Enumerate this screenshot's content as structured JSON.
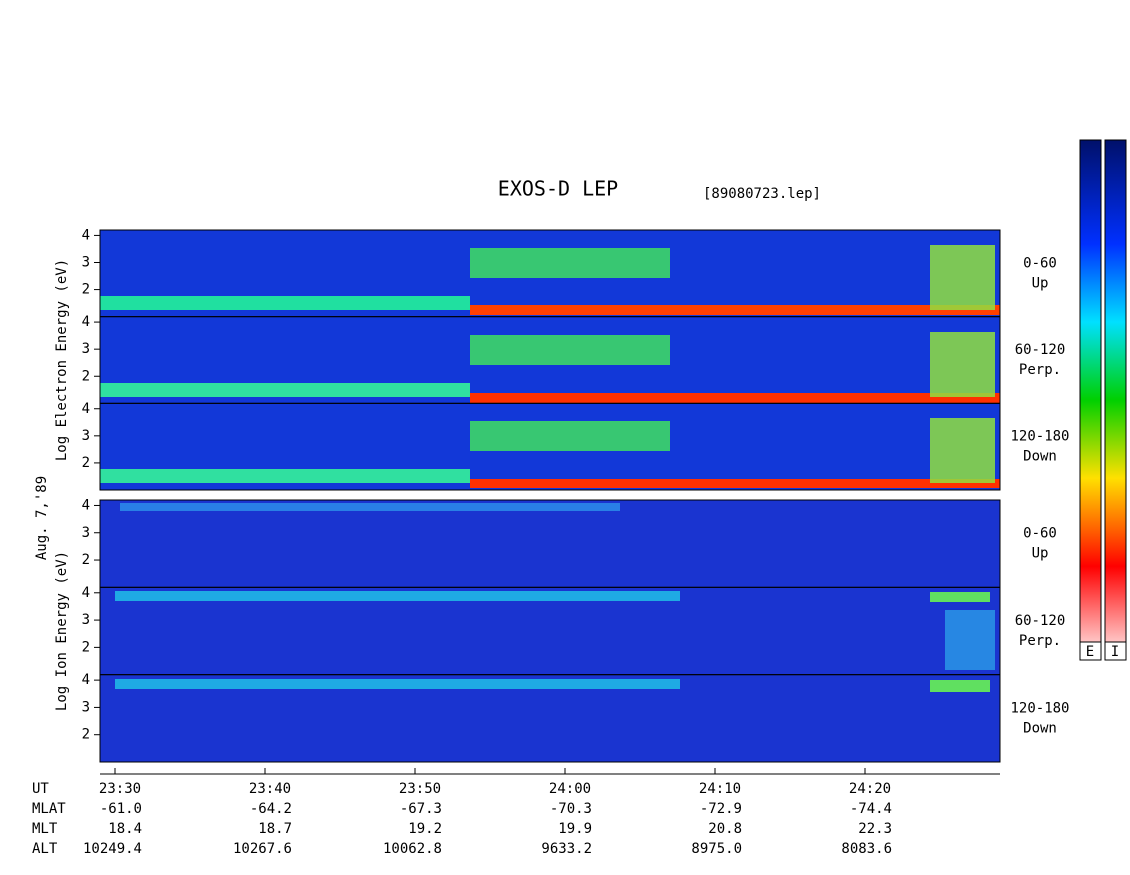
{
  "chart_data": {
    "type": "spectrogram",
    "title": "EXOS-D LEP",
    "file": "[89080723.lep]",
    "date_label": "Aug. 7,'89",
    "xlim": [
      29,
      89
    ],
    "xticks": [
      {
        "value": 30,
        "label": "23:30"
      },
      {
        "value": 40,
        "label": "23:40"
      },
      {
        "value": 50,
        "label": "23:50"
      },
      {
        "value": 60,
        "label": "24:00"
      },
      {
        "value": 70,
        "label": "24:10"
      },
      {
        "value": 80,
        "label": "24:20"
      }
    ],
    "groups": [
      {
        "ylabel": "Log  Electron  Energy (eV)",
        "panels": [
          {
            "label": [
              "0-60",
              "Up"
            ],
            "ylim": [
              1,
              4.2
            ],
            "yticks": [
              2,
              3,
              4
            ]
          },
          {
            "label": [
              "60-120",
              "Perp."
            ],
            "ylim": [
              1,
              4.2
            ],
            "yticks": [
              2,
              3,
              4
            ]
          },
          {
            "label": [
              "120-180",
              "Down"
            ],
            "ylim": [
              1,
              4.2
            ],
            "yticks": [
              2,
              3,
              4
            ]
          }
        ]
      },
      {
        "ylabel": "Log  Ion  Energy (eV)",
        "panels": [
          {
            "label": [
              "0-60",
              "Up"
            ],
            "ylim": [
              1,
              4.2
            ],
            "yticks": [
              2,
              3,
              4
            ]
          },
          {
            "label": [
              "60-120",
              "Perp."
            ],
            "ylim": [
              1,
              4.2
            ],
            "yticks": [
              2,
              3,
              4
            ]
          },
          {
            "label": [
              "120-180",
              "Down"
            ],
            "ylim": [
              1,
              4.2
            ],
            "yticks": [
              2,
              3,
              4
            ]
          }
        ]
      }
    ],
    "colorbars": [
      "E",
      "I"
    ],
    "orbit": {
      "ut_label": "UT",
      "rows": [
        {
          "name": "MLAT",
          "values": [
            "-61.0",
            "-64.2",
            "-67.3",
            "-70.3",
            "-72.9",
            "-74.4"
          ]
        },
        {
          "name": "MLT",
          "values": [
            "18.4",
            "18.7",
            "19.2",
            "19.9",
            "20.8",
            "22.3"
          ]
        },
        {
          "name": "ALT",
          "values": [
            "10249.4",
            "10267.6",
            "10062.8",
            "9633.2",
            "8975.0",
            "8083.6"
          ]
        }
      ]
    }
  }
}
